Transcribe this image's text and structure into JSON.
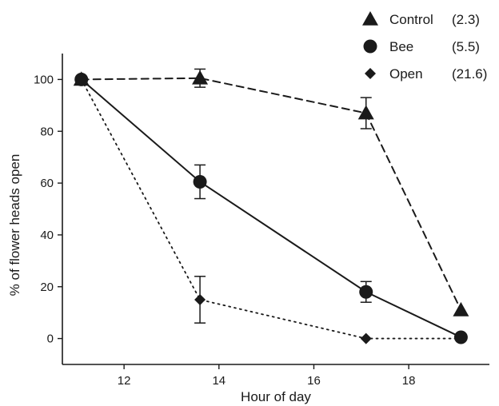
{
  "chart_data": {
    "type": "line",
    "xlabel": "Hour of day",
    "ylabel": "% of flower heads open",
    "xlim": [
      10.7,
      19.7
    ],
    "ylim": [
      -10,
      110
    ],
    "x_ticks": [
      12,
      14,
      16,
      18
    ],
    "y_ticks": [
      0,
      20,
      40,
      60,
      80,
      100
    ],
    "legend_position": "top-right",
    "series": [
      {
        "name": "Control",
        "legend_value": "(2.3)",
        "marker": "triangle",
        "line_style": "dashed",
        "x": [
          11.1,
          13.6,
          17.1,
          19.1
        ],
        "y": [
          100,
          100.5,
          87,
          11
        ],
        "error": [
          0,
          3.5,
          6,
          0
        ]
      },
      {
        "name": "Bee",
        "legend_value": "(5.5)",
        "marker": "circle",
        "line_style": "solid",
        "x": [
          11.1,
          13.6,
          17.1,
          19.1
        ],
        "y": [
          100,
          60.5,
          18,
          0.5
        ],
        "error": [
          0,
          6.5,
          4,
          0
        ]
      },
      {
        "name": "Open",
        "legend_value": "(21.6)",
        "marker": "diamond",
        "line_style": "dotted",
        "x": [
          11.1,
          13.6,
          17.1,
          19.1
        ],
        "y": [
          100,
          15,
          0,
          0
        ],
        "error": [
          0,
          9,
          0,
          0
        ]
      }
    ]
  }
}
